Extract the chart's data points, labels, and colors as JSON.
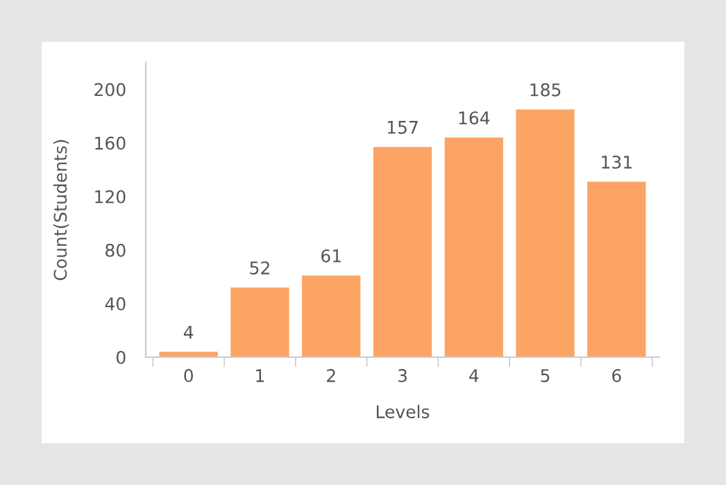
{
  "chart_data": {
    "type": "bar",
    "xlabel": "Levels",
    "ylabel": "Count(Students)",
    "categories": [
      "0",
      "1",
      "2",
      "3",
      "4",
      "5",
      "6"
    ],
    "values": [
      4,
      52,
      61,
      157,
      164,
      185,
      131
    ],
    "color": "#fba464",
    "ylim": [
      0,
      220
    ],
    "yticks": [
      0,
      40,
      80,
      120,
      160,
      200
    ],
    "data_labels": true,
    "grid": false
  }
}
